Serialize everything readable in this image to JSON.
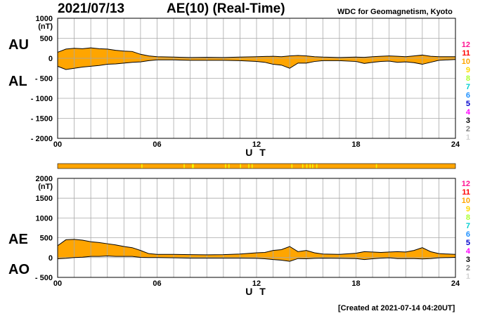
{
  "header": {
    "date": "2021/07/13",
    "title": "AE(10) (Real-Time)",
    "source": "WDC for Geomagnetism, Kyoto"
  },
  "footer": {
    "created": "[Created at 2021-07-14 04:20UT]"
  },
  "colors": {
    "fill": "#FFA500",
    "line": "#000000",
    "grid": "#A9A9A9",
    "bar_light": "#FFD200",
    "bar_yellow": "#F5F500"
  },
  "station_count_legend": [
    {
      "label": "12",
      "color": "#FF1493"
    },
    {
      "label": "11",
      "color": "#FF0000"
    },
    {
      "label": "10",
      "color": "#FFA500"
    },
    {
      "label": "9",
      "color": "#FFD700"
    },
    {
      "label": "8",
      "color": "#ADFF2F"
    },
    {
      "label": "7",
      "color": "#00CED1"
    },
    {
      "label": "6",
      "color": "#1E90FF"
    },
    {
      "label": "5",
      "color": "#0000CD"
    },
    {
      "label": "4",
      "color": "#FF00FF"
    },
    {
      "label": "3",
      "color": "#000000"
    },
    {
      "label": "2",
      "color": "#808080"
    },
    {
      "label": "1",
      "color": "#D3D3D3"
    }
  ],
  "station_count_bar": {
    "base_count": 10,
    "events": [
      {
        "hour": 5.05,
        "count": 9
      },
      {
        "hour": 7.6,
        "count": 9
      },
      {
        "hour": 8.1,
        "count": 9
      },
      {
        "hour": 8.15,
        "count": 9
      },
      {
        "hour": 10.1,
        "count": 9
      },
      {
        "hour": 10.3,
        "count": 9
      },
      {
        "hour": 11.0,
        "count": 9
      },
      {
        "hour": 11.5,
        "count": 9
      },
      {
        "hour": 11.7,
        "count": 9
      },
      {
        "hour": 14.1,
        "count": 9
      },
      {
        "hour": 14.75,
        "count": 9
      },
      {
        "hour": 15.0,
        "count": 9
      },
      {
        "hour": 15.2,
        "count": 9
      },
      {
        "hour": 15.35,
        "count": 9
      },
      {
        "hour": 15.6,
        "count": 9
      },
      {
        "hour": 19.2,
        "count": 9
      }
    ]
  },
  "chart_data": [
    {
      "type": "area",
      "series_labels": [
        "AU",
        "AL"
      ],
      "y_unit": "(nT)",
      "ylim": [
        -2000,
        1000
      ],
      "yticks": [
        "1000",
        "500",
        "0",
        "- 500",
        "- 1000",
        "- 1500",
        "- 2000"
      ],
      "xlim": [
        0,
        24
      ],
      "xticks": [
        "00",
        "06",
        "12",
        "18",
        "24"
      ],
      "xlabel": "U T",
      "grid": true,
      "x": [
        0,
        0.5,
        1,
        1.5,
        2,
        2.5,
        3,
        3.5,
        4,
        4.5,
        5,
        5.5,
        6,
        7,
        8,
        9,
        10,
        11,
        12,
        12.5,
        13,
        13.5,
        14,
        14.5,
        15,
        15.5,
        16,
        17,
        18,
        18.5,
        19,
        19.5,
        20,
        20.5,
        21,
        21.5,
        22,
        22.5,
        23,
        24
      ],
      "series": [
        {
          "name": "AU",
          "values": [
            150,
            230,
            250,
            240,
            260,
            240,
            230,
            200,
            180,
            170,
            100,
            60,
            40,
            30,
            20,
            25,
            20,
            30,
            40,
            45,
            50,
            40,
            60,
            70,
            60,
            40,
            30,
            20,
            30,
            25,
            40,
            50,
            60,
            50,
            40,
            60,
            80,
            50,
            40,
            40
          ]
        },
        {
          "name": "AL",
          "values": [
            -200,
            -280,
            -250,
            -220,
            -200,
            -180,
            -150,
            -140,
            -120,
            -100,
            -90,
            -60,
            -40,
            -40,
            -50,
            -50,
            -50,
            -60,
            -80,
            -100,
            -150,
            -170,
            -250,
            -120,
            -120,
            -80,
            -60,
            -60,
            -80,
            -130,
            -100,
            -80,
            -70,
            -100,
            -90,
            -110,
            -150,
            -100,
            -50,
            -30
          ]
        }
      ]
    },
    {
      "type": "area",
      "series_labels": [
        "AE",
        "AO"
      ],
      "y_unit": "(nT)",
      "ylim": [
        -500,
        2000
      ],
      "yticks": [
        "2000",
        "1500",
        "1000",
        "500",
        "0",
        "- 500"
      ],
      "xlim": [
        0,
        24
      ],
      "xticks": [
        "00",
        "06",
        "12",
        "18",
        "24"
      ],
      "xlabel": "U T",
      "grid": true,
      "x": [
        0,
        0.5,
        1,
        1.5,
        2,
        2.5,
        3,
        3.5,
        4,
        4.5,
        5,
        5.5,
        6,
        7,
        8,
        9,
        10,
        11,
        12,
        12.5,
        13,
        13.5,
        14,
        14.5,
        15,
        15.5,
        16,
        17,
        18,
        18.5,
        19,
        19.5,
        20,
        20.5,
        21,
        21.5,
        22,
        22.5,
        23,
        24
      ],
      "series": [
        {
          "name": "AE",
          "values": [
            300,
            450,
            460,
            440,
            400,
            380,
            350,
            320,
            280,
            250,
            180,
            100,
            80,
            80,
            75,
            70,
            75,
            90,
            120,
            130,
            180,
            200,
            280,
            150,
            180,
            120,
            90,
            80,
            110,
            150,
            140,
            130,
            140,
            150,
            140,
            180,
            250,
            150,
            100,
            80
          ]
        },
        {
          "name": "AO",
          "values": [
            -30,
            -20,
            0,
            10,
            30,
            30,
            40,
            30,
            30,
            30,
            5,
            0,
            0,
            -5,
            -15,
            -15,
            -15,
            -15,
            -20,
            -30,
            -50,
            -65,
            -95,
            -25,
            -30,
            -20,
            -15,
            -20,
            -25,
            -50,
            -30,
            -15,
            -5,
            -25,
            -25,
            -25,
            -35,
            -25,
            -5,
            5
          ]
        }
      ]
    }
  ]
}
